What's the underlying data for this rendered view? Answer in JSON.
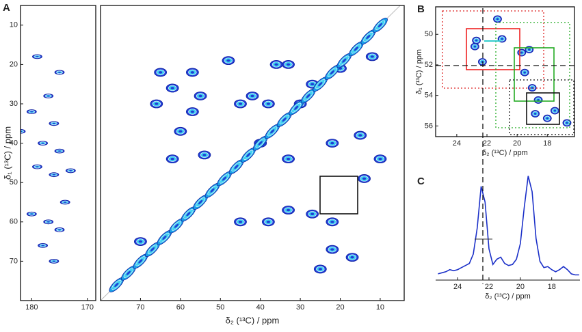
{
  "labels": {
    "a": "A",
    "b": "B",
    "c": "C"
  },
  "chart_data": [
    {
      "type": "contour",
      "xlim": [
        182,
        168.5
      ],
      "ylim": [
        5,
        80
      ],
      "xticks": [
        180,
        170
      ],
      "yticks": [
        10,
        20,
        30,
        40,
        50,
        60,
        70
      ],
      "ylabel": "δ₁ (¹³C) / ppm",
      "series": [
        {
          "color": "#1f3fd6",
          "x": [
            179,
            175,
            177,
            180,
            176,
            178,
            175,
            179,
            176,
            174,
            180,
            177,
            175,
            178,
            176,
            182,
            173
          ],
          "values": [
            18,
            22,
            28,
            32,
            35,
            40,
            42,
            46,
            48,
            55,
            58,
            60,
            62,
            66,
            70,
            37,
            47
          ]
        }
      ]
    },
    {
      "type": "contour",
      "xlim": [
        80,
        4
      ],
      "ylim": [
        5,
        80
      ],
      "xticks": [
        70,
        60,
        50,
        40,
        30,
        20,
        10
      ],
      "xlabel": "δ₂ (¹³C) / ppm",
      "series": [
        {
          "color": "#1f3fd6",
          "x": [
            57,
            60,
            62,
            54,
            65,
            42,
            38,
            33,
            30,
            33,
            22,
            15,
            20,
            33,
            27,
            38,
            22,
            22,
            17,
            45,
            45,
            62,
            66,
            48,
            12,
            10,
            14,
            27,
            55,
            36,
            70,
            25,
            40,
            57
          ],
          "values": [
            32,
            37,
            26,
            43,
            22,
            28,
            30,
            20,
            30,
            44,
            40,
            38,
            21,
            57,
            58,
            60,
            60,
            67,
            69,
            30,
            60,
            44,
            30,
            19,
            18,
            44,
            49,
            25,
            28,
            20,
            65,
            72,
            40,
            22
          ]
        },
        {
          "color": "#1aa0e8",
          "x": [
            76,
            73,
            70,
            67,
            64,
            61,
            58,
            55,
            52,
            49,
            46,
            43,
            40,
            37,
            34,
            31,
            28,
            25,
            22,
            19,
            16,
            13,
            10
          ],
          "values": [
            76,
            73,
            70,
            67,
            64,
            61,
            58,
            55,
            52,
            49,
            46,
            43,
            40,
            37,
            34,
            31,
            28,
            25,
            22,
            19,
            16,
            13,
            10
          ]
        }
      ]
    },
    {
      "type": "contour",
      "xlim": [
        25.4,
        16.2
      ],
      "ylim": [
        48.2,
        56.7
      ],
      "xticks": [
        24,
        22,
        20,
        18
      ],
      "yticks": [
        50,
        52,
        54,
        56
      ],
      "xlabel": "δ₂ (¹³C) / ppm",
      "ylabel": "δ₁ (¹³C) / ppm",
      "series": [
        {
          "color": "#1f3fd6",
          "x": [
            21.3,
            22.3,
            22.8,
            21.0,
            19.7,
            19.5,
            19.0,
            18.6,
            18.8,
            18.0,
            17.5,
            19.2,
            16.7,
            22.7
          ],
          "values": [
            49.0,
            51.8,
            50.8,
            50.3,
            51.2,
            52.5,
            53.5,
            54.3,
            55.2,
            55.5,
            55.0,
            51.0,
            55.8,
            50.4
          ]
        }
      ]
    },
    {
      "type": "line",
      "xlim": [
        25.4,
        16.2
      ],
      "ylim": [
        0,
        1.05
      ],
      "xticks": [
        24,
        22,
        20,
        18
      ],
      "xlabel": "δ₂ (¹³C) / ppm",
      "color": "#1a2fc8",
      "x": [
        25.25,
        25.0,
        24.75,
        24.5,
        24.25,
        24.0,
        23.75,
        23.5,
        23.25,
        23.0,
        22.75,
        22.5,
        22.25,
        22.0,
        21.75,
        21.5,
        21.25,
        21.0,
        20.75,
        20.5,
        20.25,
        20.0,
        19.75,
        19.5,
        19.25,
        19.0,
        18.75,
        18.5,
        18.25,
        18.0,
        17.75,
        17.5,
        17.25,
        17.0,
        16.75,
        16.5,
        16.25
      ],
      "values": [
        0.06,
        0.07,
        0.08,
        0.1,
        0.09,
        0.1,
        0.12,
        0.14,
        0.16,
        0.25,
        0.5,
        0.9,
        0.75,
        0.3,
        0.15,
        0.2,
        0.22,
        0.16,
        0.14,
        0.15,
        0.2,
        0.35,
        0.7,
        1.0,
        0.85,
        0.4,
        0.18,
        0.12,
        0.13,
        0.1,
        0.08,
        0.1,
        0.13,
        0.1,
        0.06,
        0.05,
        0.05
      ]
    }
  ]
}
